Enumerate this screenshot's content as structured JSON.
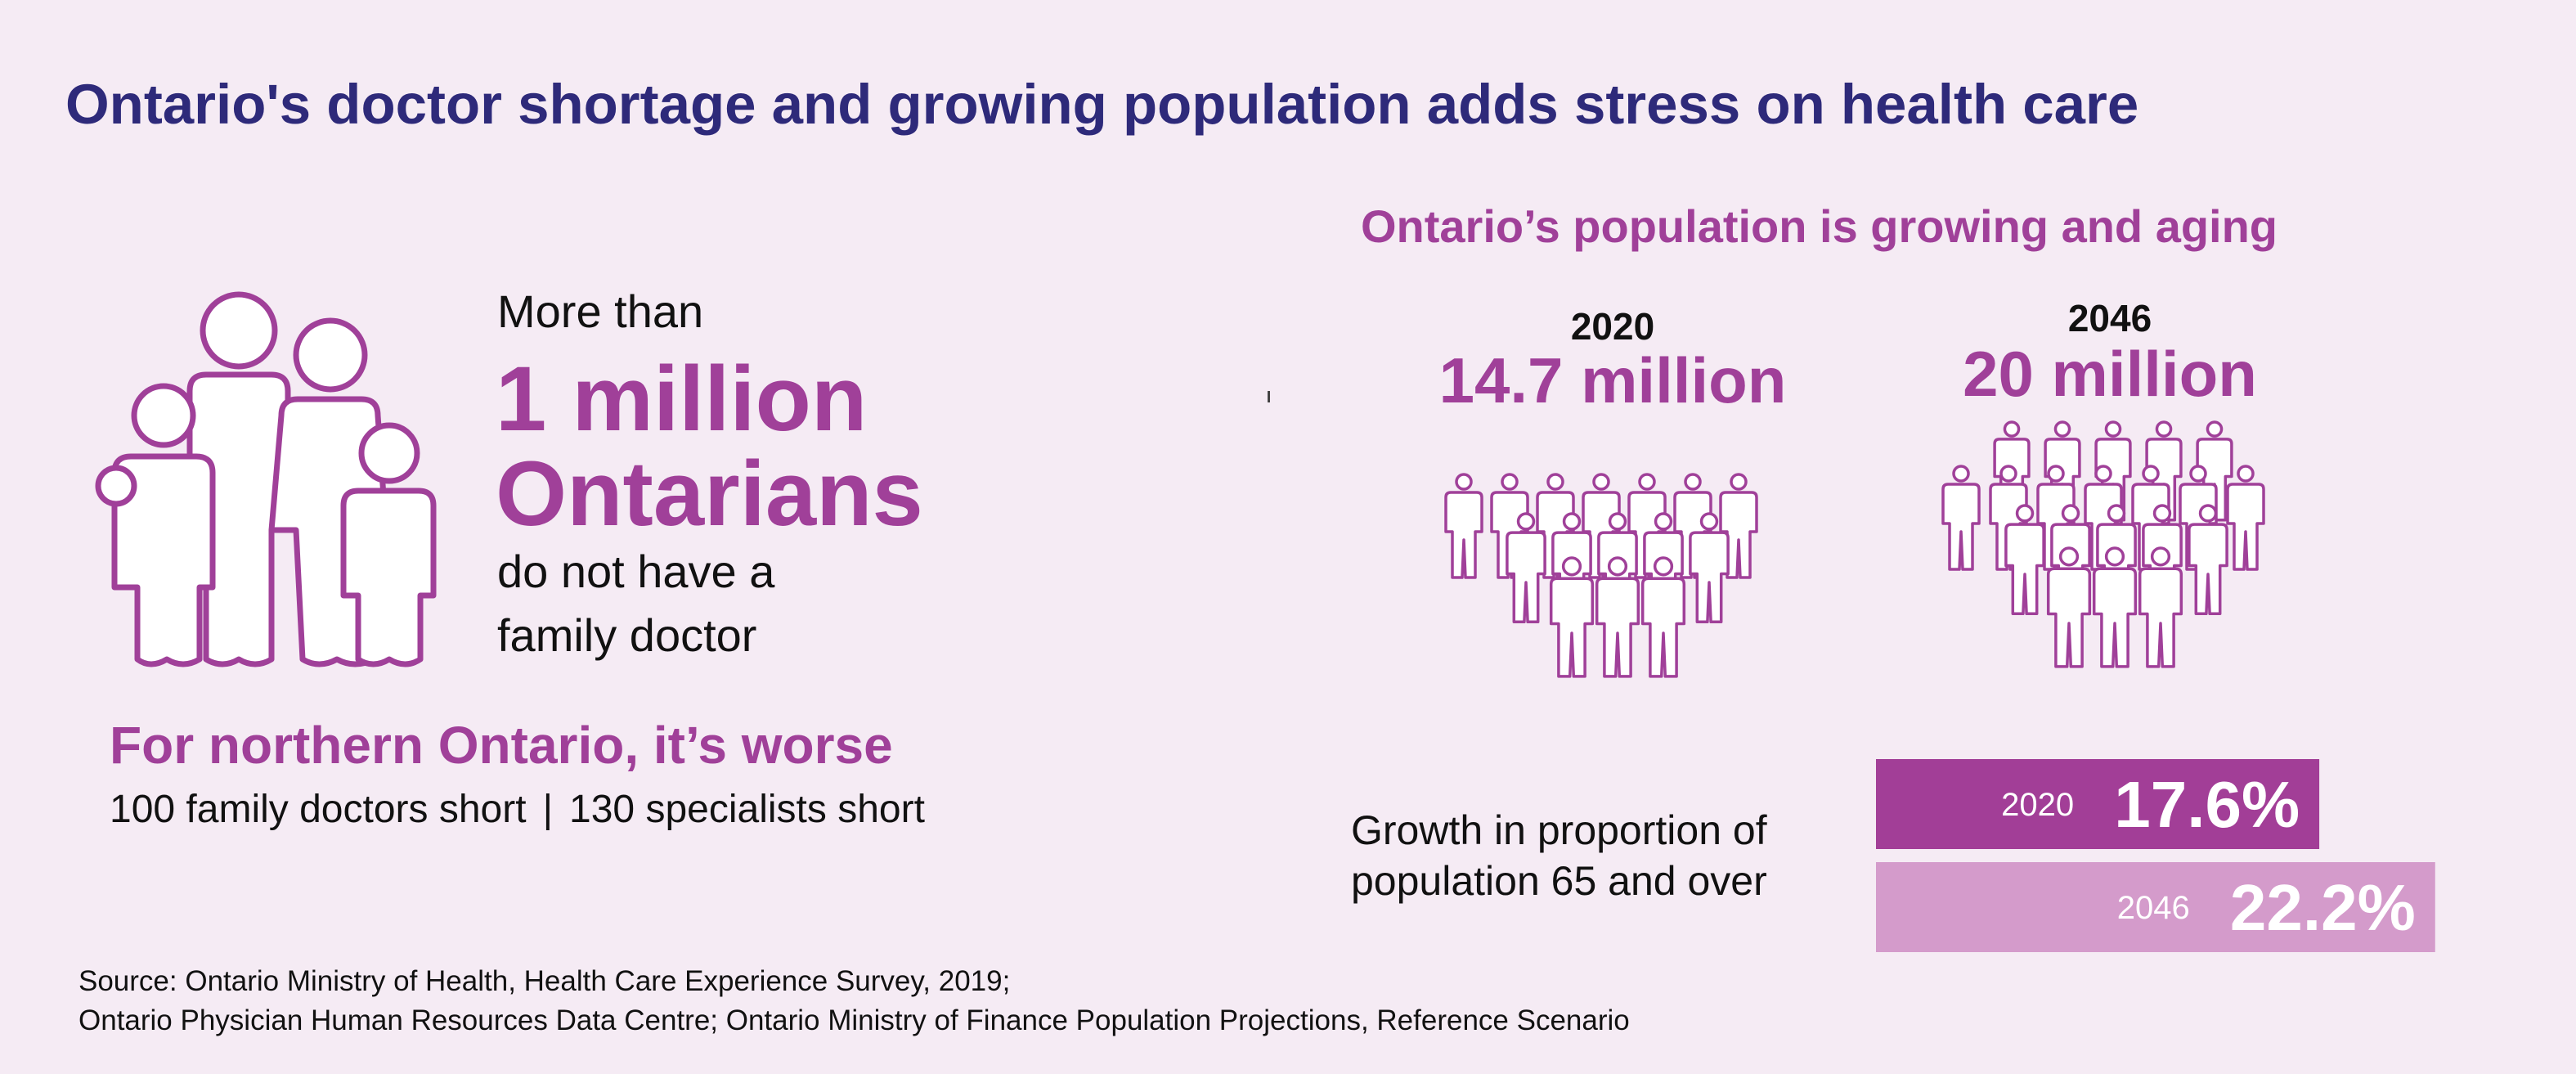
{
  "title": "Ontario's doctor shortage and growing population adds stress on health care",
  "left_panel": {
    "icon": "family-icon",
    "more_than": "More than",
    "headline_line1": "1 million",
    "headline_line2": "Ontarians",
    "sub_line1": "do not have a",
    "sub_line2": "family doctor",
    "northern_title": "For northern Ontario, it’s worse",
    "northern_item1": "100 family doctors short",
    "northern_separator": "|",
    "northern_item2": "130 specialists short"
  },
  "right_panel": {
    "subtitle": "Ontario’s population is growing and aging",
    "icon": "crowd-icon",
    "growth_label_line1": "Growth in proportion of",
    "growth_label_line2": "population 65 and over"
  },
  "chart_data": [
    {
      "type": "table",
      "rows": [
        {
          "year": "2020",
          "population": "14.7 million",
          "population_millions": 14.7
        },
        {
          "year": "2046",
          "population": "20 million",
          "population_millions": 20
        }
      ]
    },
    {
      "type": "bar",
      "categories": [
        "2020",
        "2046"
      ],
      "values": [
        17.6,
        22.2
      ],
      "value_labels": [
        "17.6%",
        "22.2%"
      ],
      "colors": [
        "#a23e97",
        "#d49bcb"
      ]
    }
  ],
  "colors": {
    "title": "#2e2a7a",
    "accent": "#a04099",
    "background": "#f5ebf4",
    "bar_2020": "#a23e97",
    "bar_2046": "#d49bcb"
  },
  "source": {
    "line1": "Source: Ontario Ministry of Health, Health Care Experience Survey, 2019;",
    "line2": "Ontario Physician Human Resources Data Centre; Ontario Ministry of Finance Population Projections, Reference Scenario"
  }
}
